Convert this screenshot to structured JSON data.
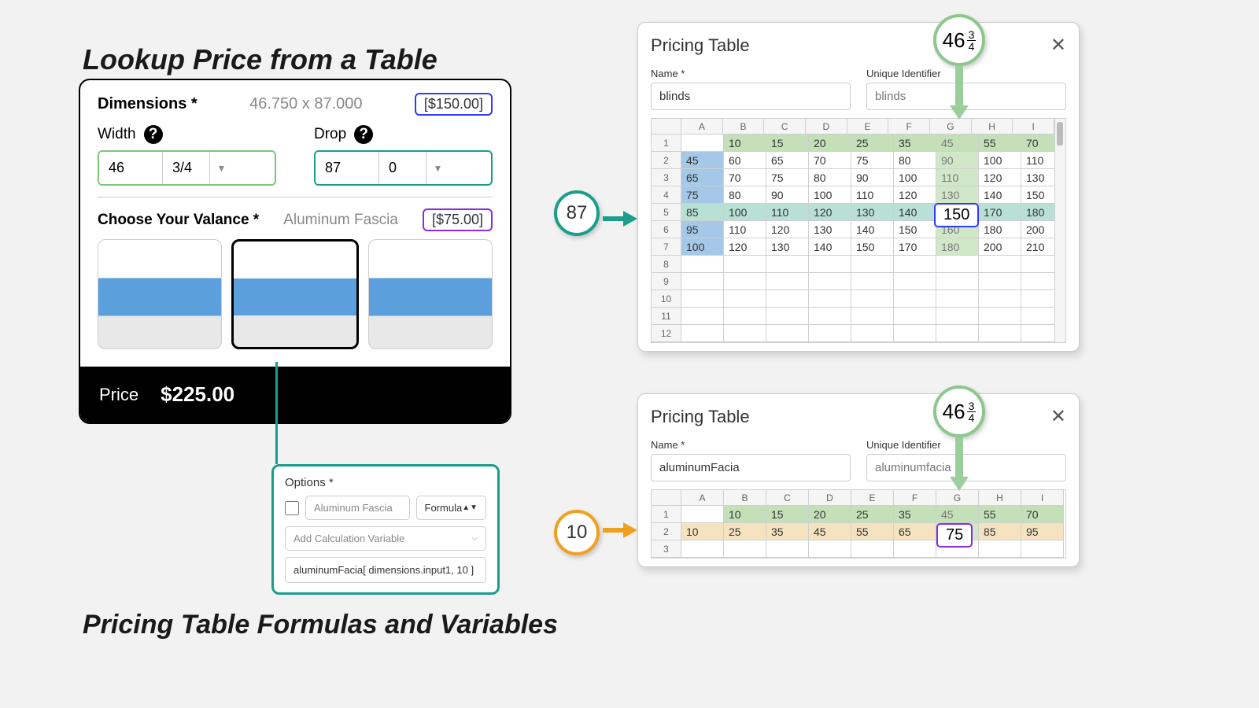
{
  "titles": {
    "main": "Lookup Price from a Table",
    "bottom": "Pricing Table Formulas and Variables"
  },
  "product": {
    "dimensions_label": "Dimensions *",
    "dimensions_value": "46.750 x 87.000",
    "price1": "[$150.00]",
    "width_label": "Width",
    "drop_label": "Drop",
    "width_whole": "46",
    "width_frac": "3/4",
    "drop_whole": "87",
    "drop_frac": "0",
    "valance_label": "Choose Your Valance *",
    "valance_selected": "Aluminum Fascia",
    "price2": "[$75.00]",
    "price_label": "Price",
    "price_total": "$225.00"
  },
  "options": {
    "title": "Options *",
    "name_placeholder": "Aluminum Fascia",
    "formula_label": "Formula",
    "calc_placeholder": "Add Calculation Variable",
    "formula_value": "aluminumFacia[ dimensions.input1, 10 ]"
  },
  "callouts": {
    "row87": "87",
    "row10": "10",
    "col_whole": "46",
    "col_num": "3",
    "col_den": "4"
  },
  "table1": {
    "title": "Pricing Table",
    "name_label": "Name *",
    "name_value": "blinds",
    "uid_label": "Unique Identifier",
    "uid_placeholder": "blinds",
    "cols": [
      "A",
      "B",
      "C",
      "D",
      "E",
      "F",
      "G",
      "H",
      "I"
    ],
    "row_count": 12,
    "data": [
      [
        "",
        "10",
        "15",
        "20",
        "25",
        "35",
        "45",
        "55",
        "70"
      ],
      [
        "45",
        "60",
        "65",
        "70",
        "75",
        "80",
        "90",
        "100",
        "110"
      ],
      [
        "65",
        "70",
        "75",
        "80",
        "90",
        "100",
        "110",
        "120",
        "130"
      ],
      [
        "75",
        "80",
        "90",
        "100",
        "110",
        "120",
        "130",
        "140",
        "150"
      ],
      [
        "85",
        "100",
        "110",
        "120",
        "130",
        "140",
        "150",
        "170",
        "180"
      ],
      [
        "95",
        "110",
        "120",
        "130",
        "140",
        "150",
        "160",
        "180",
        "200"
      ],
      [
        "100",
        "120",
        "130",
        "140",
        "150",
        "170",
        "180",
        "200",
        "210"
      ]
    ],
    "colors": {
      "header_row_bg": "#c4e0b8",
      "header_col_bg": "#a5c8e8",
      "highlight_row_bg": "#b8e0d4",
      "highlight_col_bg": "#d0e8c8",
      "highlight_col_idx": 6,
      "highlight_row_idx": 4,
      "cell_border": "#d0d0d0"
    },
    "result_cell": {
      "value": "150",
      "border": "#2e3cff"
    }
  },
  "table2": {
    "title": "Pricing Table",
    "name_label": "Name *",
    "name_value": "aluminumFacia",
    "uid_label": "Unique Identifier",
    "uid_placeholder": "aluminumfacia",
    "cols": [
      "A",
      "B",
      "C",
      "D",
      "E",
      "F",
      "G",
      "H",
      "I"
    ],
    "row_count": 3,
    "data": [
      [
        "",
        "10",
        "15",
        "20",
        "25",
        "35",
        "45",
        "55",
        "70"
      ],
      [
        "10",
        "25",
        "35",
        "45",
        "55",
        "65",
        "75",
        "85",
        "95"
      ]
    ],
    "colors": {
      "header_row_bg": "#c4e0b8",
      "header_col_bg": "#c8c8c8",
      "highlight_row_bg": "#f5e3c0",
      "highlight_col_bg": "#d0e8c8",
      "highlight_col_idx": 6,
      "highlight_row_idx": 1
    },
    "result_cell": {
      "value": "75",
      "border": "#8a2be2"
    }
  }
}
